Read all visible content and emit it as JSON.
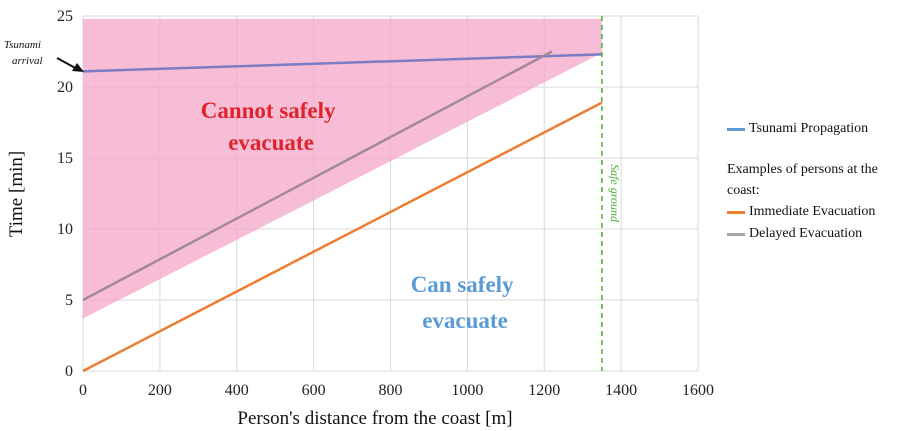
{
  "chart_data": {
    "type": "line",
    "xlabel": "Person's distance from the coast [m]",
    "ylabel": "Time [min]",
    "xlim": [
      0,
      1600
    ],
    "ylim": [
      0,
      25
    ],
    "x_ticks": [
      0,
      200,
      400,
      600,
      800,
      1000,
      1200,
      1400,
      1600
    ],
    "y_ticks": [
      0,
      5,
      10,
      15,
      20,
      25
    ],
    "grid": true,
    "legend_position": "right",
    "series": [
      {
        "name": "Tsunami Propagation",
        "color": "#7b7cc4",
        "legend_color": "#5b9bd5",
        "x": [
          0,
          1350
        ],
        "y": [
          21.1,
          22.3
        ]
      },
      {
        "name": "Immediate Evacuation",
        "color": "#ed7d31",
        "x": [
          0,
          1350
        ],
        "y": [
          0,
          18.9
        ]
      },
      {
        "name": "Delayed Evacuation",
        "color": "#a5879b",
        "legend_color": "#a5a5a5",
        "x": [
          0,
          1220
        ],
        "y": [
          5,
          22.5
        ]
      }
    ],
    "shaded_region": {
      "color": "#f4a7c8",
      "polygon": [
        [
          0,
          3.7
        ],
        [
          1350,
          22.4
        ],
        [
          1350,
          24.8
        ],
        [
          0,
          24.8
        ]
      ]
    },
    "safe_ground_line": {
      "x": 1350,
      "color": "#4cae33"
    },
    "annotations": {
      "tsunami_arrival": "Tsunami arrival",
      "cannot": "Cannot safely evacuate",
      "can": "Can safely evacuate",
      "safe_ground": "Safe ground"
    },
    "legend_note": "Examples of persons at the coast:"
  }
}
